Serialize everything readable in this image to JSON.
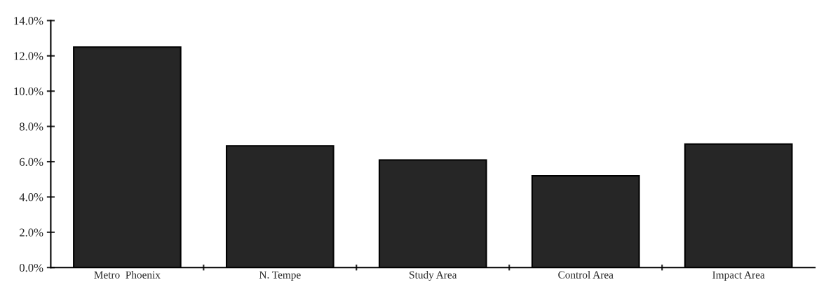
{
  "chart_data": {
    "type": "bar",
    "categories": [
      "Metro  Phoenix",
      "N. Tempe",
      "Study Area",
      "Control Area",
      "Impact Area"
    ],
    "values": [
      12.5,
      6.9,
      6.1,
      5.2,
      7.0
    ],
    "color": "#262626",
    "ylim": [
      0,
      14
    ],
    "yticks": [
      {
        "value": 0,
        "label": "0.0%"
      },
      {
        "value": 2,
        "label": "2.0%"
      },
      {
        "value": 4,
        "label": "4.0%"
      },
      {
        "value": 6,
        "label": "6.0%"
      },
      {
        "value": 8,
        "label": "8.0%"
      },
      {
        "value": 10,
        "label": "10.0%"
      },
      {
        "value": 12,
        "label": "12.0%"
      },
      {
        "value": 14,
        "label": "14.0%"
      }
    ],
    "grid": false,
    "legend": false
  }
}
